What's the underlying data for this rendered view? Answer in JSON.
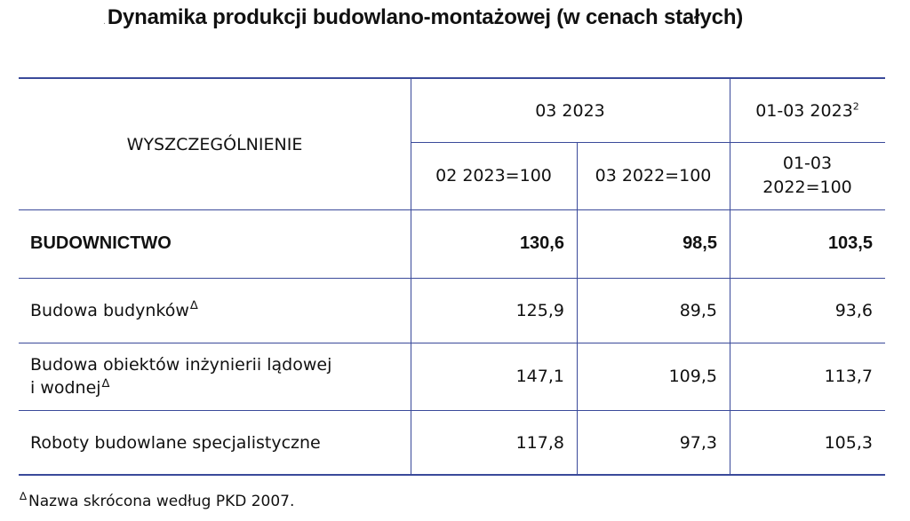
{
  "title": "Dynamika produkcji budowlano-montażowej (w cenach stałych)",
  "title_mark": ".",
  "header": {
    "stub": "WYSZCZEGÓLNIENIE",
    "group_month": "03 2023",
    "group_cumulative": "01-03 2023",
    "group_cumulative_note": "2",
    "col_prev_month": "02 2023=100",
    "col_prev_year": "03 2022=100",
    "col_cumulative_line1": "01-03",
    "col_cumulative_line2": "2022=100"
  },
  "rows": [
    {
      "label": "BUDOWNICTWO",
      "label_line2": "",
      "mark": "",
      "mark2": "",
      "v1": "130,6",
      "v2": "98,5",
      "v3": "103,5"
    },
    {
      "label": "Budowa budynków",
      "label_line2": "",
      "mark": "∆",
      "mark2": "",
      "v1": "125,9",
      "v2": "89,5",
      "v3": "93,6"
    },
    {
      "label": "Budowa obiektów inżynierii lądowej",
      "label_line2": "i wodnej",
      "mark": "",
      "mark2": "∆",
      "v1": "147,1",
      "v2": "109,5",
      "v3": "113,7"
    },
    {
      "label": "Roboty budowlane specjalistyczne",
      "label_line2": "",
      "mark": "",
      "mark2": "",
      "v1": "117,8",
      "v2": "97,3",
      "v3": "105,3"
    }
  ],
  "footnote": {
    "mark": "∆",
    "text": "Nazwa skrócona według PKD 2007."
  }
}
